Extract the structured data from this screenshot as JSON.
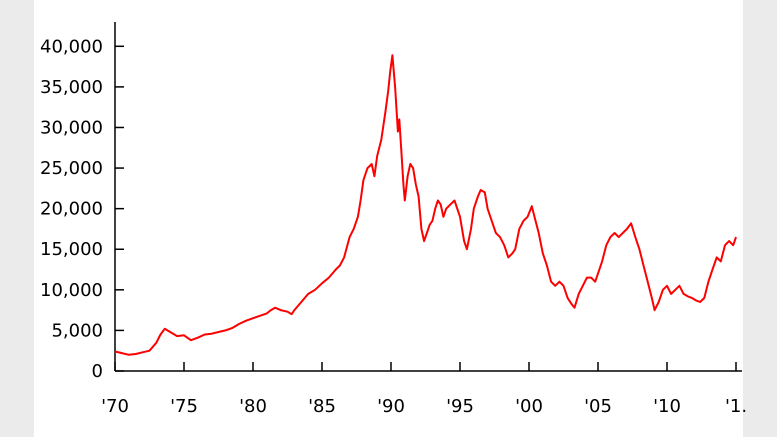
{
  "chart_data": {
    "type": "line",
    "title": "",
    "xlabel": "",
    "ylabel": "",
    "colors": {
      "line": "#ff0000",
      "axis": "#000000",
      "page_bg": "#ebebeb",
      "plot_bg": "#ffffff"
    },
    "grid": false,
    "legend": "none",
    "xlim": [
      1970,
      2015
    ],
    "ylim": [
      0,
      42000
    ],
    "x_ticks": [
      {
        "value": 1970,
        "label": "'70"
      },
      {
        "value": 1975,
        "label": "'75"
      },
      {
        "value": 1980,
        "label": "'80"
      },
      {
        "value": 1985,
        "label": "'85"
      },
      {
        "value": 1990,
        "label": "'90"
      },
      {
        "value": 1995,
        "label": "'95"
      },
      {
        "value": 2000,
        "label": "'00"
      },
      {
        "value": 2005,
        "label": "'05"
      },
      {
        "value": 2010,
        "label": "'10"
      },
      {
        "value": 2015,
        "label": "'1."
      }
    ],
    "y_ticks": [
      {
        "value": 0,
        "label": "0"
      },
      {
        "value": 5000,
        "label": "5,000"
      },
      {
        "value": 10000,
        "label": "10,000"
      },
      {
        "value": 15000,
        "label": "15,000"
      },
      {
        "value": 20000,
        "label": "20,000"
      },
      {
        "value": 25000,
        "label": "25,000"
      },
      {
        "value": 30000,
        "label": "30,000"
      },
      {
        "value": 35000,
        "label": "35,000"
      },
      {
        "value": 40000,
        "label": "40,000"
      }
    ],
    "series": [
      {
        "x": [
          1970.0,
          1970.5,
          1971.0,
          1971.5,
          1972.0,
          1972.5,
          1973.0,
          1973.3,
          1973.6,
          1974.0,
          1974.5,
          1975.0,
          1975.5,
          1976.0,
          1976.5,
          1977.0,
          1977.5,
          1978.0,
          1978.5,
          1979.0,
          1979.5,
          1980.0,
          1980.5,
          1981.0,
          1981.3,
          1981.6,
          1982.0,
          1982.5,
          1982.8,
          1983.0,
          1983.5,
          1984.0,
          1984.5,
          1985.0,
          1985.5,
          1986.0,
          1986.3,
          1986.6,
          1987.0,
          1987.3,
          1987.6,
          1987.8,
          1988.0,
          1988.3,
          1988.6,
          1988.8,
          1989.0,
          1989.3,
          1989.6,
          1989.8,
          1989.95,
          1990.1,
          1990.3,
          1990.5,
          1990.6,
          1990.75,
          1990.9,
          1991.0,
          1991.2,
          1991.4,
          1991.6,
          1991.8,
          1992.0,
          1992.2,
          1992.4,
          1992.6,
          1992.8,
          1993.0,
          1993.2,
          1993.4,
          1993.6,
          1993.8,
          1994.0,
          1994.3,
          1994.6,
          1995.0,
          1995.3,
          1995.5,
          1995.8,
          1996.0,
          1996.3,
          1996.5,
          1996.8,
          1997.0,
          1997.3,
          1997.6,
          1997.9,
          1998.2,
          1998.5,
          1998.8,
          1999.0,
          1999.3,
          1999.6,
          1999.9,
          2000.2,
          2000.4,
          2000.7,
          2001.0,
          2001.3,
          2001.6,
          2001.9,
          2002.2,
          2002.5,
          2002.8,
          2003.1,
          2003.3,
          2003.6,
          2003.9,
          2004.2,
          2004.5,
          2004.8,
          2005.0,
          2005.3,
          2005.6,
          2005.9,
          2006.2,
          2006.5,
          2006.8,
          2007.1,
          2007.4,
          2007.7,
          2008.0,
          2008.3,
          2008.6,
          2008.9,
          2009.1,
          2009.4,
          2009.7,
          2010.0,
          2010.3,
          2010.6,
          2010.9,
          2011.2,
          2011.5,
          2011.8,
          2012.1,
          2012.4,
          2012.7,
          2013.0,
          2013.3,
          2013.6,
          2013.9,
          2014.2,
          2014.5,
          2014.8,
          2015.0
        ],
        "y": [
          2400,
          2200,
          2000,
          2100,
          2300,
          2500,
          3500,
          4500,
          5200,
          4800,
          4300,
          4400,
          3800,
          4100,
          4500,
          4600,
          4800,
          5000,
          5300,
          5800,
          6200,
          6500,
          6800,
          7100,
          7500,
          7800,
          7500,
          7300,
          7000,
          7500,
          8500,
          9500,
          10000,
          10800,
          11500,
          12500,
          13000,
          14000,
          16500,
          17500,
          19000,
          21000,
          23500,
          25000,
          25500,
          24000,
          26500,
          28500,
          32000,
          34500,
          37000,
          38900,
          35000,
          29500,
          31000,
          27000,
          23000,
          21000,
          24000,
          25500,
          25000,
          23000,
          21500,
          17500,
          16000,
          17000,
          18000,
          18500,
          20000,
          21000,
          20500,
          19000,
          20000,
          20500,
          21000,
          19000,
          16000,
          15000,
          17500,
          20000,
          21500,
          22300,
          22000,
          20000,
          18500,
          17000,
          16500,
          15500,
          14000,
          14500,
          15000,
          17500,
          18500,
          19000,
          20300,
          19000,
          17000,
          14500,
          13000,
          11000,
          10500,
          11000,
          10500,
          9000,
          8200,
          7800,
          9500,
          10500,
          11500,
          11500,
          11000,
          12000,
          13500,
          15500,
          16500,
          17000,
          16500,
          17000,
          17500,
          18200,
          16500,
          15000,
          13000,
          11000,
          9000,
          7500,
          8500,
          10000,
          10500,
          9500,
          10000,
          10500,
          9500,
          9200,
          9000,
          8700,
          8500,
          9000,
          11000,
          12500,
          14000,
          13500,
          15500,
          16000,
          15500,
          16500
        ]
      }
    ]
  }
}
